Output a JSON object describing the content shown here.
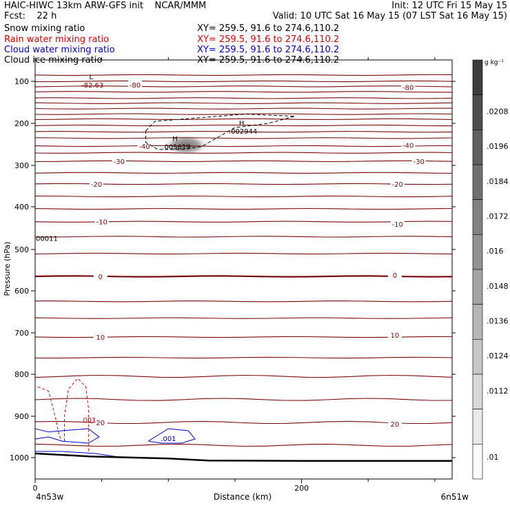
{
  "header": {
    "line1_left": "HAIC-HIWC 13km ARW-GFS init    NCAR/MMM",
    "line1_right": "Init: 12 UTC Fri 15 May 15",
    "fcst": "Fcst:    22 h",
    "valid": "Valid: 10 UTC Sat 16 May 15 (07 LST Sat 16 May 15)",
    "fields": [
      {
        "label": "Snow mixing ratio",
        "xy": "XY= 259.5, 91.6 to 274.6,110.2",
        "color": "#000000"
      },
      {
        "label": "Rain water mixing ratio",
        "xy": "XY= 259.5, 91.6 to 274.6,110.2",
        "color": "#e00000"
      },
      {
        "label": "Cloud water mixing ratio",
        "xy": "XY= 259.5, 91.6 to 274.6,110.2",
        "color": "#0000d0"
      },
      {
        "label": "Cloud ice mixing ratio",
        "xy": "XY= 259.5, 91.6 to 274.6,110.2",
        "color": "#000000"
      }
    ]
  },
  "chart_data": {
    "type": "cross-section contour",
    "xlabel": "Distance (km)",
    "ylabel": "Pressure (hPa)",
    "xlim": [
      0,
      313
    ],
    "ylim": [
      1065,
      50
    ],
    "x_ticks": [
      {
        "v": 0,
        "label": "0"
      },
      {
        "v": 200,
        "label": "200"
      }
    ],
    "y_ticks": [
      {
        "v": 100,
        "label": "100"
      },
      {
        "v": 200,
        "label": "200"
      },
      {
        "v": 300,
        "label": "300"
      },
      {
        "v": 400,
        "label": "400"
      },
      {
        "v": 500,
        "label": "500"
      },
      {
        "v": 600,
        "label": "600"
      },
      {
        "v": 700,
        "label": "700"
      },
      {
        "v": 800,
        "label": "800"
      },
      {
        "v": 900,
        "label": "900"
      },
      {
        "v": 1000,
        "label": "1000"
      }
    ],
    "endpoints": {
      "left": "4n53w",
      "right": "6n51w"
    },
    "colorbar": {
      "units": "g kg⁻¹",
      "labels": [
        ".0208",
        ".0196",
        ".0184",
        ".0172",
        ".016",
        ".0148",
        ".0136",
        ".0124",
        ".0112",
        ".01"
      ]
    },
    "temperature_isotherms_C": [
      {
        "v": -80,
        "labels": [
          {
            "x": 75,
            "p": 108
          },
          {
            "x": 280,
            "p": 114
          }
        ]
      },
      {
        "v": -40,
        "labels": [
          {
            "x": 82,
            "p": 254
          },
          {
            "x": 280,
            "p": 252
          }
        ]
      },
      {
        "v": -30,
        "labels": [
          {
            "x": 63,
            "p": 290
          },
          {
            "x": 288,
            "p": 290
          }
        ]
      },
      {
        "v": -20,
        "labels": [
          {
            "x": 46,
            "p": 345
          },
          {
            "x": 272,
            "p": 345
          }
        ]
      },
      {
        "v": -10,
        "labels": [
          {
            "x": 50,
            "p": 435
          },
          {
            "x": 272,
            "p": 440
          }
        ]
      },
      {
        "v": 0,
        "labels": [
          {
            "x": 49,
            "p": 565
          },
          {
            "x": 270,
            "p": 562
          }
        ]
      },
      {
        "v": 10,
        "labels": [
          {
            "x": 49,
            "p": 710
          },
          {
            "x": 270,
            "p": 705
          }
        ]
      },
      {
        "v": 20,
        "labels": [
          {
            "x": 49,
            "p": 915
          },
          {
            "x": 270,
            "p": 918
          }
        ]
      }
    ],
    "isotherm_pressures_hPa": [
      85,
      100,
      112,
      125,
      140,
      152,
      165,
      178,
      190,
      205,
      220,
      235,
      254,
      270,
      290,
      318,
      345,
      375,
      405,
      435,
      470,
      510,
      565,
      625,
      665,
      710,
      760,
      805,
      860,
      915,
      970
    ],
    "extrema": [
      {
        "type": "L",
        "value": "-82.63",
        "x": 42,
        "p": 108
      },
      {
        "type": "H",
        "value": ".005619",
        "x": 105,
        "p": 255
      },
      {
        "type": "H",
        "value": ".002944",
        "x": 155,
        "p": 218
      }
    ],
    "left_edge_label": "00011",
    "contour_labels": [
      {
        "text": ".001",
        "x": 40,
        "p": 915,
        "color": "#e00000"
      },
      {
        "text": ".001",
        "x": 100,
        "p": 960,
        "color": "#0000d0"
      }
    ],
    "terrain_hPa": [
      {
        "x": 0,
        "p": 990
      },
      {
        "x": 40,
        "p": 997
      },
      {
        "x": 100,
        "p": 1002
      },
      {
        "x": 130,
        "p": 1007
      },
      {
        "x": 200,
        "p": 1008
      },
      {
        "x": 313,
        "p": 1008
      }
    ]
  }
}
